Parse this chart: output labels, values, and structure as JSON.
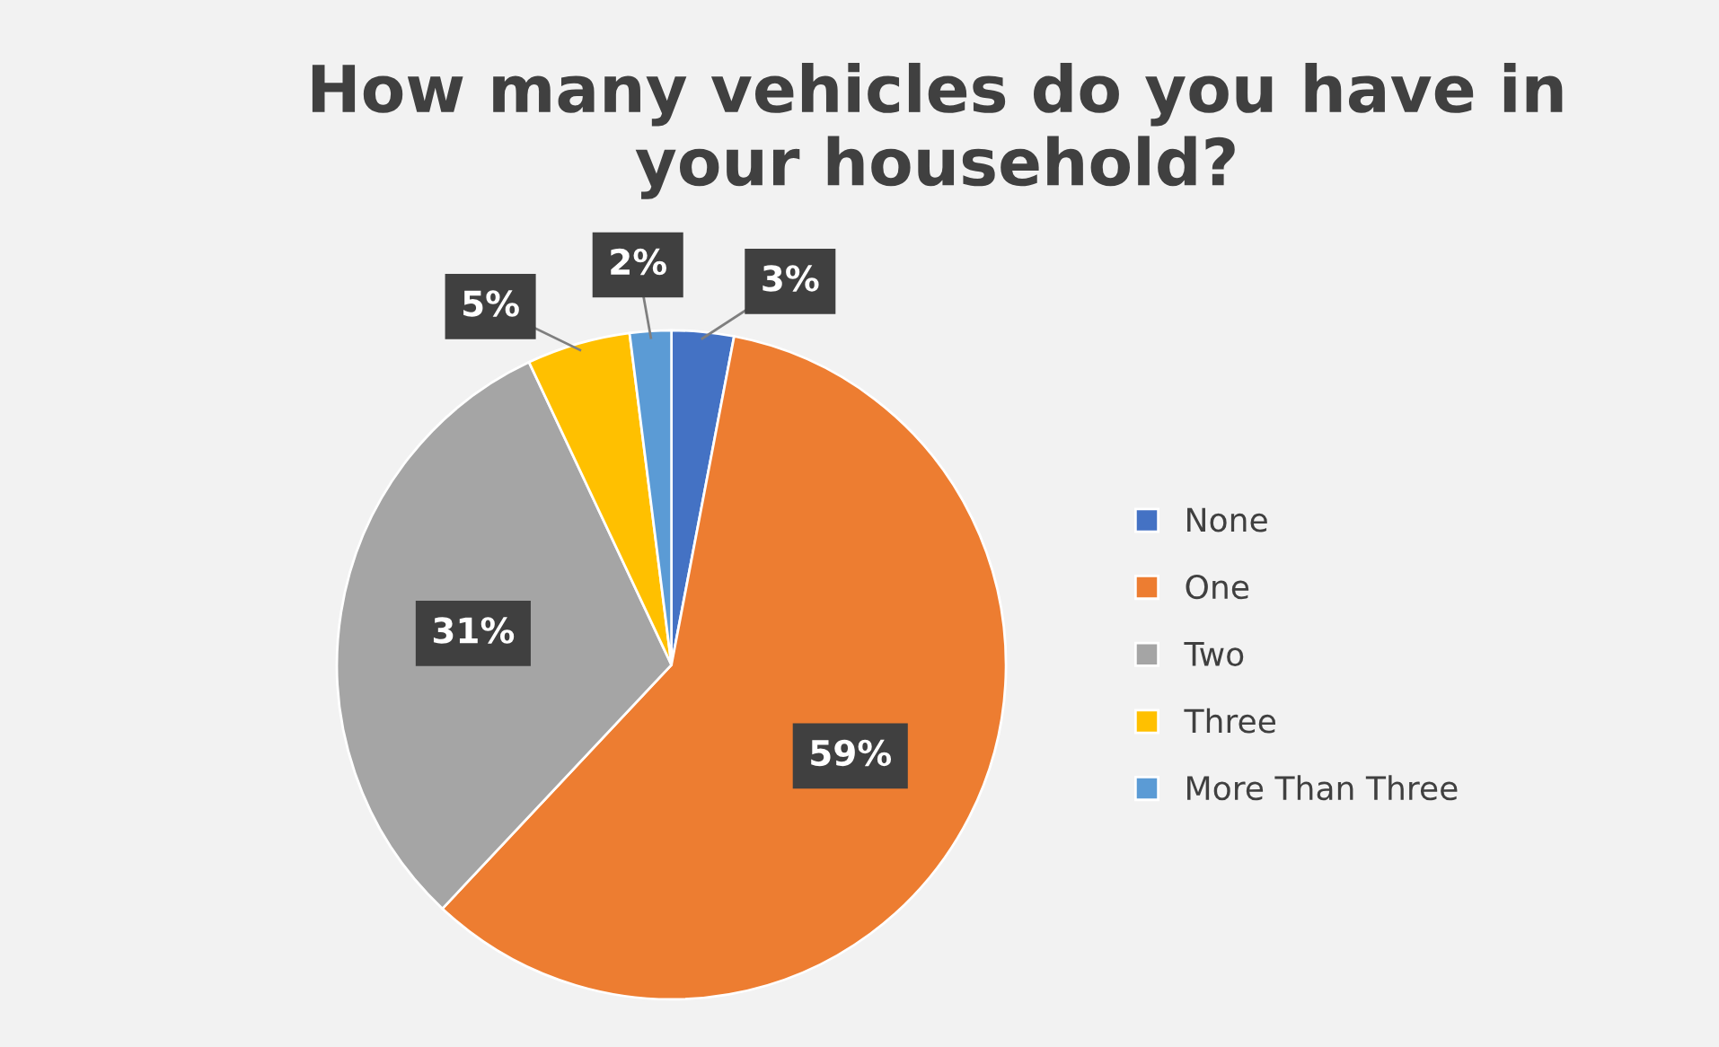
{
  "chart_data": {
    "type": "pie",
    "title": "How many vehicles do you have in\nyour household?",
    "categories": [
      "None",
      "One",
      "Two",
      "Three",
      "More Than Three"
    ],
    "values": [
      3,
      59,
      31,
      5,
      2
    ],
    "colors": [
      "#4472c4",
      "#ed7d31",
      "#a5a5a5",
      "#ffc000",
      "#5b9bd5"
    ],
    "value_labels": [
      "3%",
      "59%",
      "31%",
      "5%",
      "2%"
    ],
    "legend": "right"
  }
}
